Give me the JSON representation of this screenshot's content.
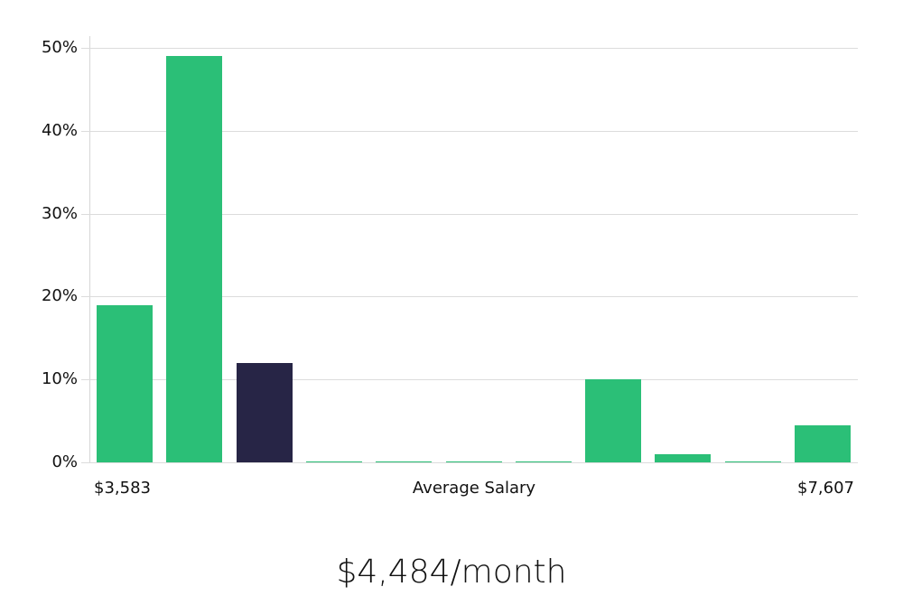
{
  "chart_data": {
    "type": "bar",
    "title": "",
    "xlabel": "Average Salary",
    "ylabel": "",
    "ylim": [
      0,
      50
    ],
    "yticks": [
      "0%",
      "10%",
      "20%",
      "30%",
      "40%",
      "50%"
    ],
    "x_range_labels": {
      "min": "$3,583",
      "max": "$7,607"
    },
    "categories": [
      "bin1",
      "bin2",
      "bin3",
      "bin4",
      "bin5",
      "bin6",
      "bin7",
      "bin8",
      "bin9",
      "bin10",
      "bin11"
    ],
    "values": [
      19,
      49,
      12,
      0,
      0,
      0,
      0,
      10,
      1,
      0,
      4.5
    ],
    "highlight_index": 2,
    "colors": {
      "bar": "#2bbf77",
      "highlight": "#272546",
      "grid": "#dcdcdc"
    },
    "grid": true,
    "legend": null
  },
  "labels": {
    "x_min": "$3,583",
    "x_axis_title": "Average Salary",
    "x_max": "$7,607",
    "summary": "$4,484/month"
  },
  "yticks": [
    "0%",
    "10%",
    "20%",
    "30%",
    "40%",
    "50%"
  ]
}
